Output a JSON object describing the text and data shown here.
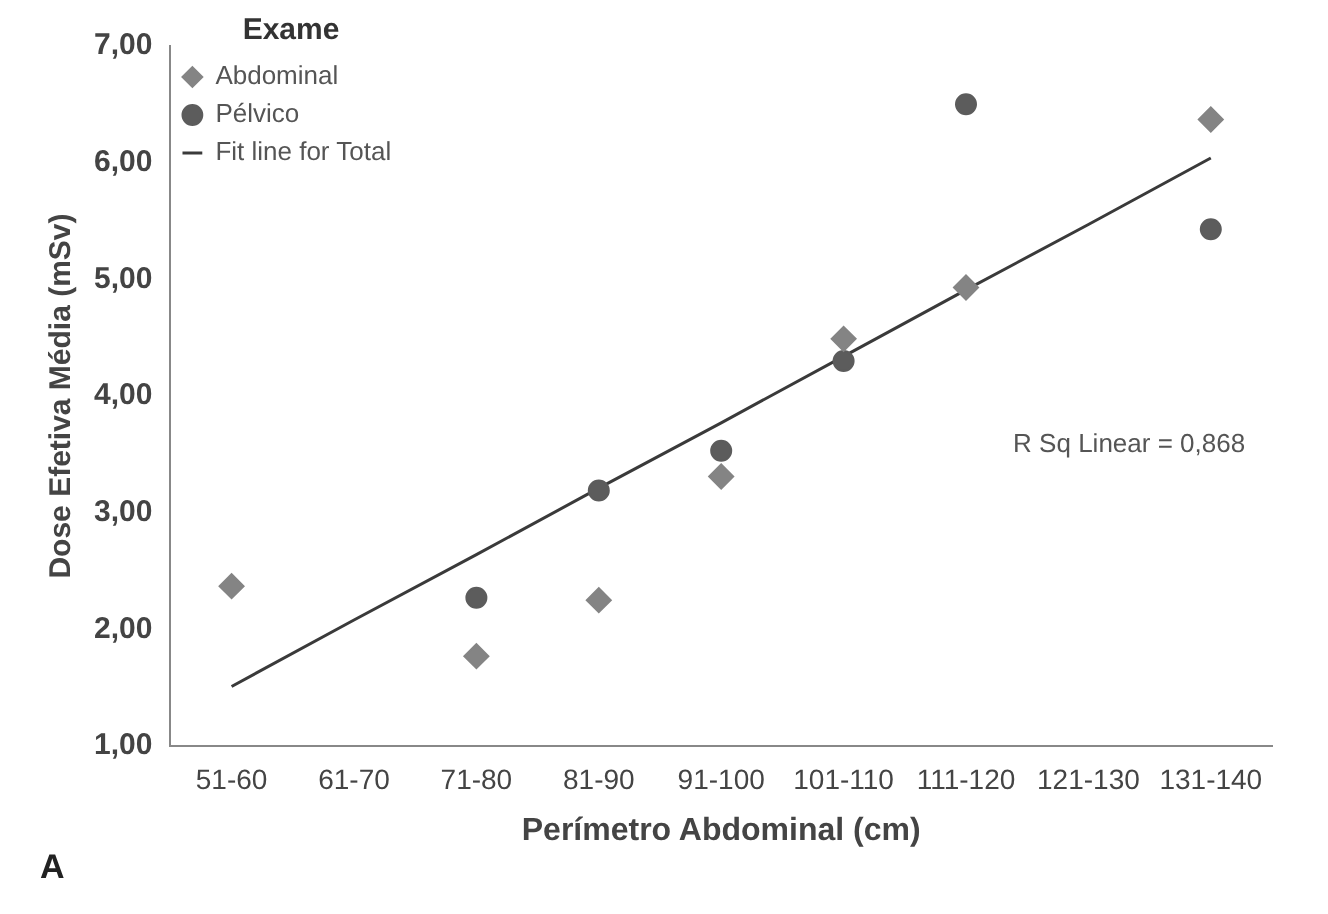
{
  "chart_data": {
    "type": "scatter",
    "xlabel": "Perímetro Abdominal (cm)",
    "ylabel": "Dose Efetiva Média (mSv)",
    "legend_title": "Exame",
    "legend": "top left",
    "grid": false,
    "categories": [
      "51-60",
      "61-70",
      "71-80",
      "81-90",
      "91-100",
      "101-110",
      "111-120",
      "121-130",
      "131-140"
    ],
    "ylim": [
      1,
      7
    ],
    "yticks": [
      {
        "value": 1,
        "label": "1,00"
      },
      {
        "value": 2,
        "label": "2,00"
      },
      {
        "value": 3,
        "label": "3,00"
      },
      {
        "value": 4,
        "label": "4,00"
      },
      {
        "value": 5,
        "label": "5,00"
      },
      {
        "value": 6,
        "label": "6,00"
      },
      {
        "value": 7,
        "label": "7,00"
      }
    ],
    "series": [
      {
        "name": "Abdominal",
        "marker": "diamond",
        "color": "#848484",
        "values": [
          2.37,
          null,
          1.77,
          2.25,
          3.31,
          4.49,
          4.93,
          null,
          6.37
        ]
      },
      {
        "name": "Pélvico",
        "marker": "circle",
        "color": "#5c5c5c",
        "values": [
          null,
          null,
          2.27,
          3.19,
          3.53,
          4.3,
          6.5,
          null,
          5.43
        ]
      },
      {
        "name": "Fit line for Total",
        "type": "line",
        "marker": "none",
        "line_style": "solid",
        "color": "#3a3a3a",
        "values": [
          1.51,
          2.08,
          2.64,
          3.21,
          3.77,
          4.34,
          4.91,
          5.47,
          6.04
        ]
      }
    ],
    "annotations": [
      "R Sq Linear = 0,868",
      "A"
    ]
  }
}
